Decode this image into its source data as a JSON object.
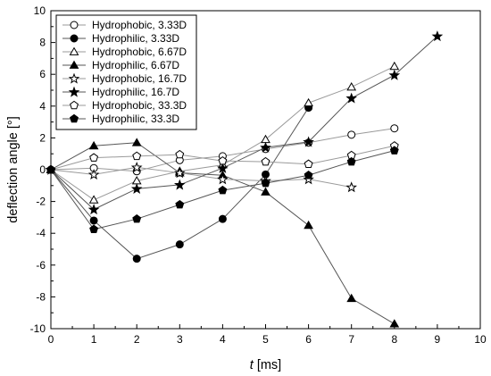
{
  "chart_data": {
    "type": "line",
    "xlabel": {
      "italic": "t",
      "unit": "[ms]"
    },
    "ylabel": "deflection angle [°]",
    "xlim": [
      0,
      10
    ],
    "ylim": [
      -10,
      10
    ],
    "x_ticks": [
      "0",
      "1",
      "2",
      "3",
      "4",
      "5",
      "6",
      "7",
      "8",
      "9",
      "10"
    ],
    "y_ticks": [
      "10",
      "8",
      "6",
      "4",
      "2",
      "0",
      "-2",
      "-4",
      "-6",
      "-8",
      "-10"
    ],
    "grid": false,
    "legend_position": "top-left",
    "series": [
      {
        "name": "Hydrophobic, 3.33D",
        "marker": "circle",
        "filled": false,
        "line_color": "#9a9a9a",
        "points": [
          [
            0,
            0
          ],
          [
            1,
            0.1
          ],
          [
            2,
            -0.1
          ],
          [
            3,
            0.6
          ],
          [
            4,
            0.85
          ],
          [
            5,
            1.3
          ],
          [
            6,
            1.7
          ],
          [
            7,
            2.2
          ],
          [
            8,
            2.6
          ]
        ]
      },
      {
        "name": "Hydrophilic, 3.33D",
        "marker": "circle",
        "filled": true,
        "line_color": "#555555",
        "points": [
          [
            0,
            0
          ],
          [
            1,
            -3.2
          ],
          [
            2,
            -5.6
          ],
          [
            3,
            -4.7
          ],
          [
            4,
            -3.1
          ],
          [
            5,
            -0.3
          ],
          [
            6,
            3.9
          ]
        ]
      },
      {
        "name": "Hydrophobic, 6.67D",
        "marker": "triangle",
        "filled": false,
        "line_color": "#9a9a9a",
        "points": [
          [
            0,
            0
          ],
          [
            1,
            -1.9
          ],
          [
            2,
            -0.7
          ],
          [
            3,
            -0.1
          ],
          [
            4,
            0.3
          ],
          [
            5,
            1.9
          ],
          [
            6,
            4.2
          ],
          [
            7,
            5.2
          ],
          [
            8,
            6.5
          ]
        ]
      },
      {
        "name": "Hydrophilic, 6.67D",
        "marker": "triangle",
        "filled": true,
        "line_color": "#555555",
        "points": [
          [
            0,
            0
          ],
          [
            1,
            1.5
          ],
          [
            2,
            1.7
          ],
          [
            3,
            -0.2
          ],
          [
            4,
            -0.35
          ],
          [
            5,
            -1.4
          ],
          [
            6,
            -3.5
          ],
          [
            7,
            -8.1
          ],
          [
            8,
            -9.7
          ]
        ]
      },
      {
        "name": "Hydrophobic, 16.7D",
        "marker": "star",
        "filled": false,
        "line_color": "#9a9a9a",
        "points": [
          [
            0,
            0
          ],
          [
            1,
            -0.3
          ],
          [
            2,
            0.15
          ],
          [
            3,
            -0.2
          ],
          [
            4,
            -0.6
          ],
          [
            5,
            -0.7
          ],
          [
            6,
            -0.6
          ],
          [
            7,
            -1.1
          ]
        ]
      },
      {
        "name": "Hydrophilic, 16.7D",
        "marker": "star",
        "filled": true,
        "line_color": "#555555",
        "points": [
          [
            0,
            0
          ],
          [
            1,
            -2.5
          ],
          [
            2,
            -1.2
          ],
          [
            3,
            -0.95
          ],
          [
            4,
            0.1
          ],
          [
            5,
            1.4
          ],
          [
            6,
            1.75
          ],
          [
            7,
            4.5
          ],
          [
            8,
            5.95
          ],
          [
            9,
            8.4
          ]
        ]
      },
      {
        "name": "Hydrophobic, 33.3D",
        "marker": "pentagon",
        "filled": false,
        "line_color": "#9a9a9a",
        "points": [
          [
            0,
            0
          ],
          [
            1,
            0.75
          ],
          [
            2,
            0.85
          ],
          [
            3,
            0.95
          ],
          [
            4,
            0.55
          ],
          [
            5,
            0.5
          ],
          [
            6,
            0.35
          ],
          [
            7,
            0.9
          ],
          [
            8,
            1.5
          ]
        ]
      },
      {
        "name": "Hydrophilic, 33.3D",
        "marker": "pentagon",
        "filled": true,
        "line_color": "#555555",
        "points": [
          [
            0,
            0
          ],
          [
            1,
            -3.75
          ],
          [
            2,
            -3.1
          ],
          [
            3,
            -2.2
          ],
          [
            4,
            -1.3
          ],
          [
            5,
            -0.85
          ],
          [
            6,
            -0.35
          ],
          [
            7,
            0.5
          ],
          [
            8,
            1.2
          ]
        ]
      }
    ]
  }
}
